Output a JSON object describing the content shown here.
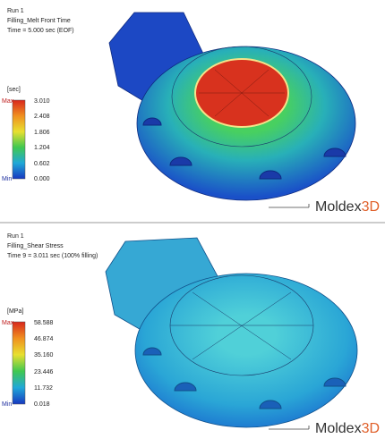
{
  "panels": [
    {
      "run": "Run 1",
      "result": "Filling_Melt Front Time",
      "time": "Time = 5.000 sec (EOF)",
      "unit": "[sec]",
      "max_label": "Max",
      "min_label": "Min",
      "legend": [
        "3.010",
        "2.408",
        "1.806",
        "1.204",
        "0.602",
        "0.000"
      ],
      "brand": {
        "name": "Moldex",
        "suffix": "3D"
      }
    },
    {
      "run": "Run 1",
      "result": "Filling_Shear Stress",
      "time": "Time 9 = 3.011 sec (100% filling)",
      "unit": "[MPa]",
      "max_label": "Max",
      "min_label": "Min",
      "legend": [
        "58.588",
        "46.874",
        "35.160",
        "23.446",
        "11.732",
        "0.018"
      ],
      "brand": {
        "name": "Moldex",
        "suffix": "3D"
      }
    }
  ]
}
